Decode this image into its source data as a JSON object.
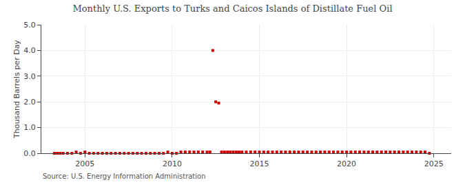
{
  "chart_data": {
    "type": "scatter",
    "title": "Monthly U.S. Exports to Turks and Caicos Islands of Distillate Fuel Oil",
    "ylabel": "Thousand Barrels per Day",
    "annotations": [
      "Source: U.S. Energy Information Administration"
    ],
    "x": [
      2003.25,
      2003.42,
      2003.58,
      2003.75,
      2004.0,
      2004.25,
      2004.5,
      2004.75,
      2005.0,
      2005.25,
      2005.5,
      2005.75,
      2006.0,
      2006.25,
      2006.5,
      2006.75,
      2007.0,
      2007.25,
      2007.5,
      2007.75,
      2008.0,
      2008.25,
      2008.5,
      2008.75,
      2009.0,
      2009.25,
      2009.5,
      2009.75,
      2010.0,
      2010.25,
      2010.5,
      2010.75,
      2011.0,
      2011.25,
      2011.5,
      2011.75,
      2012.0,
      2012.17,
      2012.33,
      2012.5,
      2012.67,
      2012.83,
      2013.0,
      2013.17,
      2013.33,
      2013.5,
      2013.67,
      2013.83,
      2014.0,
      2014.25,
      2014.5,
      2014.75,
      2015.0,
      2015.25,
      2015.5,
      2015.75,
      2016.0,
      2016.25,
      2016.5,
      2016.75,
      2017.0,
      2017.25,
      2017.5,
      2017.75,
      2018.0,
      2018.25,
      2018.5,
      2018.75,
      2019.0,
      2019.25,
      2019.5,
      2019.75,
      2020.0,
      2020.25,
      2020.5,
      2020.75,
      2021.0,
      2021.25,
      2021.5,
      2021.75,
      2022.0,
      2022.25,
      2022.5,
      2022.75,
      2023.0,
      2023.25,
      2023.5,
      2023.75,
      2024.0,
      2024.25,
      2024.5,
      2024.75
    ],
    "values": [
      0.0,
      0.0,
      0.0,
      0.0,
      0.0,
      0.0,
      0.05,
      0.0,
      0.05,
      0.0,
      0.0,
      0.0,
      0.0,
      0.0,
      0.0,
      0.0,
      0.0,
      0.0,
      0.0,
      0.0,
      0.0,
      0.0,
      0.0,
      0.0,
      0.0,
      0.0,
      0.0,
      0.05,
      0.0,
      0.0,
      0.05,
      0.05,
      0.05,
      0.05,
      0.05,
      0.05,
      0.05,
      0.05,
      4.0,
      2.0,
      1.95,
      0.05,
      0.05,
      0.05,
      0.05,
      0.05,
      0.05,
      0.05,
      0.05,
      0.05,
      0.05,
      0.05,
      0.05,
      0.05,
      0.05,
      0.05,
      0.05,
      0.05,
      0.05,
      0.05,
      0.05,
      0.05,
      0.05,
      0.05,
      0.05,
      0.05,
      0.05,
      0.05,
      0.05,
      0.05,
      0.05,
      0.05,
      0.05,
      0.05,
      0.05,
      0.05,
      0.05,
      0.05,
      0.05,
      0.05,
      0.05,
      0.05,
      0.05,
      0.05,
      0.05,
      0.05,
      0.05,
      0.05,
      0.05,
      0.05,
      0.05,
      0.0
    ],
    "color": "#cc0000",
    "marker": "square",
    "xlim": [
      2002.5,
      2026
    ],
    "ylim": [
      0,
      5.0
    ],
    "xticks": [
      2005,
      2010,
      2015,
      2020,
      2025
    ],
    "yticks": [
      {
        "value": 0.0,
        "label": "0.0"
      },
      {
        "value": 1.0,
        "label": "1.0"
      },
      {
        "value": 2.0,
        "label": "2.0"
      },
      {
        "value": 3.0,
        "label": "3.0"
      },
      {
        "value": 4.0,
        "label": "4.0"
      },
      {
        "value": 5.0,
        "label": "5.0"
      }
    ],
    "grid": true
  }
}
